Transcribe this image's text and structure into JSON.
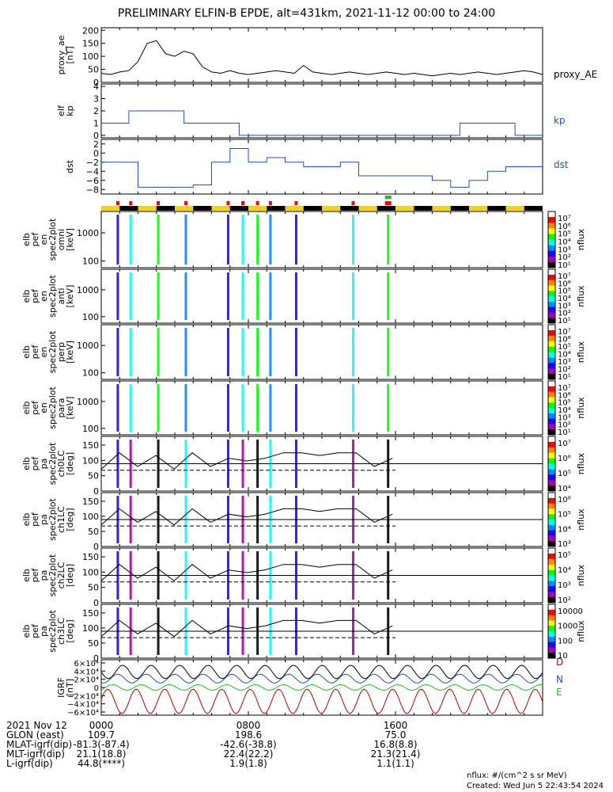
{
  "title": "PRELIMINARY ELFIN-B EPDE, alt=431km, 2021-11-12 00:00 to 24:00",
  "chart_data": [
    {
      "type": "line",
      "ylabel": [
        "proxy_ae",
        "[nT]"
      ],
      "series_label": "proxy_AE",
      "ytick_values": [
        0,
        50,
        100,
        150,
        200
      ],
      "ytick_labels": [
        "0",
        "50",
        "100",
        "150",
        "200"
      ],
      "ylim": [
        0,
        210
      ],
      "x_hours": [
        0,
        0.5,
        1,
        1.5,
        2,
        2.5,
        3,
        3.5,
        4,
        4.5,
        5,
        5.5,
        6,
        6.5,
        7,
        7.5,
        8,
        8.5,
        9,
        9.5,
        10,
        10.5,
        11,
        11.5,
        12,
        12.5,
        13,
        13.5,
        14,
        14.5,
        15,
        15.5,
        16,
        16.5,
        17,
        17.5,
        18,
        18.5,
        19,
        19.5,
        20,
        20.5,
        21,
        21.5,
        22,
        22.5,
        23,
        23.5,
        24
      ],
      "values": [
        35,
        30,
        40,
        45,
        80,
        150,
        160,
        110,
        100,
        120,
        110,
        60,
        40,
        35,
        45,
        35,
        30,
        35,
        40,
        45,
        40,
        35,
        65,
        40,
        35,
        30,
        35,
        40,
        35,
        30,
        35,
        40,
        35,
        30,
        35,
        30,
        25,
        30,
        35,
        30,
        35,
        40,
        35,
        30,
        35,
        40,
        45,
        40,
        30
      ],
      "color": "#000000"
    },
    {
      "type": "line",
      "ylabel": [
        "elf",
        "kp"
      ],
      "series_label": "kp",
      "ytick_values": [
        0,
        1,
        2,
        3,
        4
      ],
      "ytick_labels": [
        "0",
        "1",
        "2",
        "3",
        "4"
      ],
      "ylim": [
        -0.2,
        4.2
      ],
      "step_x_hours": [
        0,
        1.5,
        4.5,
        7.5,
        10.5,
        13.5,
        16.5,
        19.5,
        22.5,
        24
      ],
      "step_values": [
        1,
        2,
        1,
        0,
        0,
        0,
        0,
        1,
        0
      ],
      "color": "#1f4fd1"
    },
    {
      "type": "line",
      "ylabel": [
        "dst"
      ],
      "series_label": "dst",
      "ytick_values": [
        2,
        0,
        -2,
        -4,
        -6,
        -8
      ],
      "ytick_labels": [
        "2",
        "0",
        "−2",
        "−4",
        "−6",
        "−8"
      ],
      "ylim": [
        -9,
        3
      ],
      "step_x_hours": [
        0,
        1,
        2,
        3,
        4,
        5,
        6,
        7,
        8,
        9,
        10,
        11,
        12,
        13,
        14,
        15,
        16,
        17,
        18,
        19,
        20,
        21,
        22,
        23,
        24
      ],
      "step_values": [
        -2,
        -2,
        -7.5,
        -7.5,
        -7.5,
        -7,
        -2,
        1,
        -2,
        -1,
        -2,
        -3,
        -3,
        -2,
        -5,
        -5,
        -5,
        -5,
        -6,
        -7.5,
        -6,
        -4,
        -3,
        -3
      ],
      "color": "#1f4fd1"
    },
    {
      "type": "heatmap",
      "ylabel": [
        "elb",
        "pef",
        "en",
        "spec2plot",
        "omni",
        "[keV]"
      ],
      "yticks": [
        "1000",
        "100"
      ],
      "colorbar_label": "nflux",
      "colorbar_ticks": [
        "10⁷",
        "10⁶",
        "10⁵",
        "10⁴",
        "10³",
        "10²",
        "10¹"
      ]
    },
    {
      "type": "heatmap",
      "ylabel": [
        "elb",
        "pef",
        "en",
        "spec2plot",
        "anti",
        "[keV]"
      ],
      "yticks": [
        "1000",
        "100"
      ],
      "colorbar_label": "nflux",
      "colorbar_ticks": [
        "10⁷",
        "10⁶",
        "10⁵",
        "10⁴",
        "10³",
        "10²",
        "10¹"
      ]
    },
    {
      "type": "heatmap",
      "ylabel": [
        "elb",
        "pef",
        "en",
        "spec2plot",
        "perp",
        "[keV]"
      ],
      "yticks": [
        "1000",
        "100"
      ],
      "colorbar_label": "nflux",
      "colorbar_ticks": [
        "10⁷",
        "10⁶",
        "10⁵",
        "10⁴",
        "10³",
        "10²",
        "10¹"
      ]
    },
    {
      "type": "heatmap",
      "ylabel": [
        "elb",
        "pef",
        "en",
        "spec2plot",
        "para",
        "[keV]"
      ],
      "yticks": [
        "1000",
        "100"
      ],
      "colorbar_label": "nflux",
      "colorbar_ticks": [
        "10⁷",
        "10⁶",
        "10⁵",
        "10⁴",
        "10³",
        "10²",
        "10¹"
      ]
    },
    {
      "type": "heatmap",
      "ylabel": [
        "elb",
        "pef",
        "pa",
        "spec2plot",
        "ch0LC",
        "[deg]"
      ],
      "yticks": [
        "150",
        "100",
        "50",
        "0"
      ],
      "colorbar_label": "nflux",
      "colorbar_ticks": [
        "10⁷",
        "10⁶",
        "10⁵",
        "10⁴"
      ]
    },
    {
      "type": "heatmap",
      "ylabel": [
        "elb",
        "pef",
        "pa",
        "spec2plot",
        "ch1LC",
        "[deg]"
      ],
      "yticks": [
        "150",
        "100",
        "50",
        "0"
      ],
      "colorbar_label": "nflux",
      "colorbar_ticks": [
        "10⁶",
        "10⁵",
        "10⁴",
        "10³"
      ]
    },
    {
      "type": "heatmap",
      "ylabel": [
        "elb",
        "pef",
        "pa",
        "spec2plot",
        "ch2LC",
        "[deg]"
      ],
      "yticks": [
        "150",
        "100",
        "50",
        "0"
      ],
      "colorbar_label": "nflux",
      "colorbar_ticks": [
        "10⁵",
        "10⁴",
        "10³",
        "10²"
      ]
    },
    {
      "type": "heatmap",
      "ylabel": [
        "elb",
        "pef",
        "pa",
        "spec2plot",
        "ch3LC",
        "[deg]"
      ],
      "yticks": [
        "150",
        "100",
        "50",
        "0"
      ],
      "colorbar_label": "nflux",
      "colorbar_ticks": [
        "10000",
        "1000",
        "100",
        "10"
      ]
    },
    {
      "type": "line",
      "ylabel": [
        "IGRF",
        "[nT]"
      ],
      "ytick_labels": [
        "6×10⁴",
        "4×10⁴",
        "2×10⁴",
        "0",
        "−2×10⁴",
        "−4×10⁴",
        "−6×10⁴"
      ],
      "legend": [
        "D",
        "E",
        "N"
      ],
      "series_colors": {
        "D": "#000000",
        "E": "#c00000",
        "N": "#1f4fd1",
        "extra": "#1fbf1f"
      }
    }
  ],
  "xaxis": {
    "tick_labels": [
      "0000",
      "0800",
      "1600"
    ],
    "rows": [
      {
        "label": "2021 Nov 12",
        "values": [
          "0000",
          "0800",
          "1600"
        ]
      },
      {
        "label": "GLON (east)",
        "values": [
          "109.7",
          "198.6",
          "75.0"
        ]
      },
      {
        "label": "MLAT-igrf(dip)",
        "values": [
          "-81.3(-87.4)",
          "-42.6(-38.8)",
          "16.8(8.8)"
        ]
      },
      {
        "label": "MLT-igrf(dip)",
        "values": [
          "21.1(18.8)",
          "22.4(22.2)",
          "21.3(21.4)"
        ]
      },
      {
        "label": "L-igrf(dip)",
        "values": [
          "44.8(****)",
          "1.9(1.8)",
          "1.1(1.1)"
        ]
      }
    ]
  },
  "footer": {
    "units": "nflux: #/(cm^2 s sr MeV)",
    "created": "Created: Wed Jun  5 22:43:54 2024"
  }
}
